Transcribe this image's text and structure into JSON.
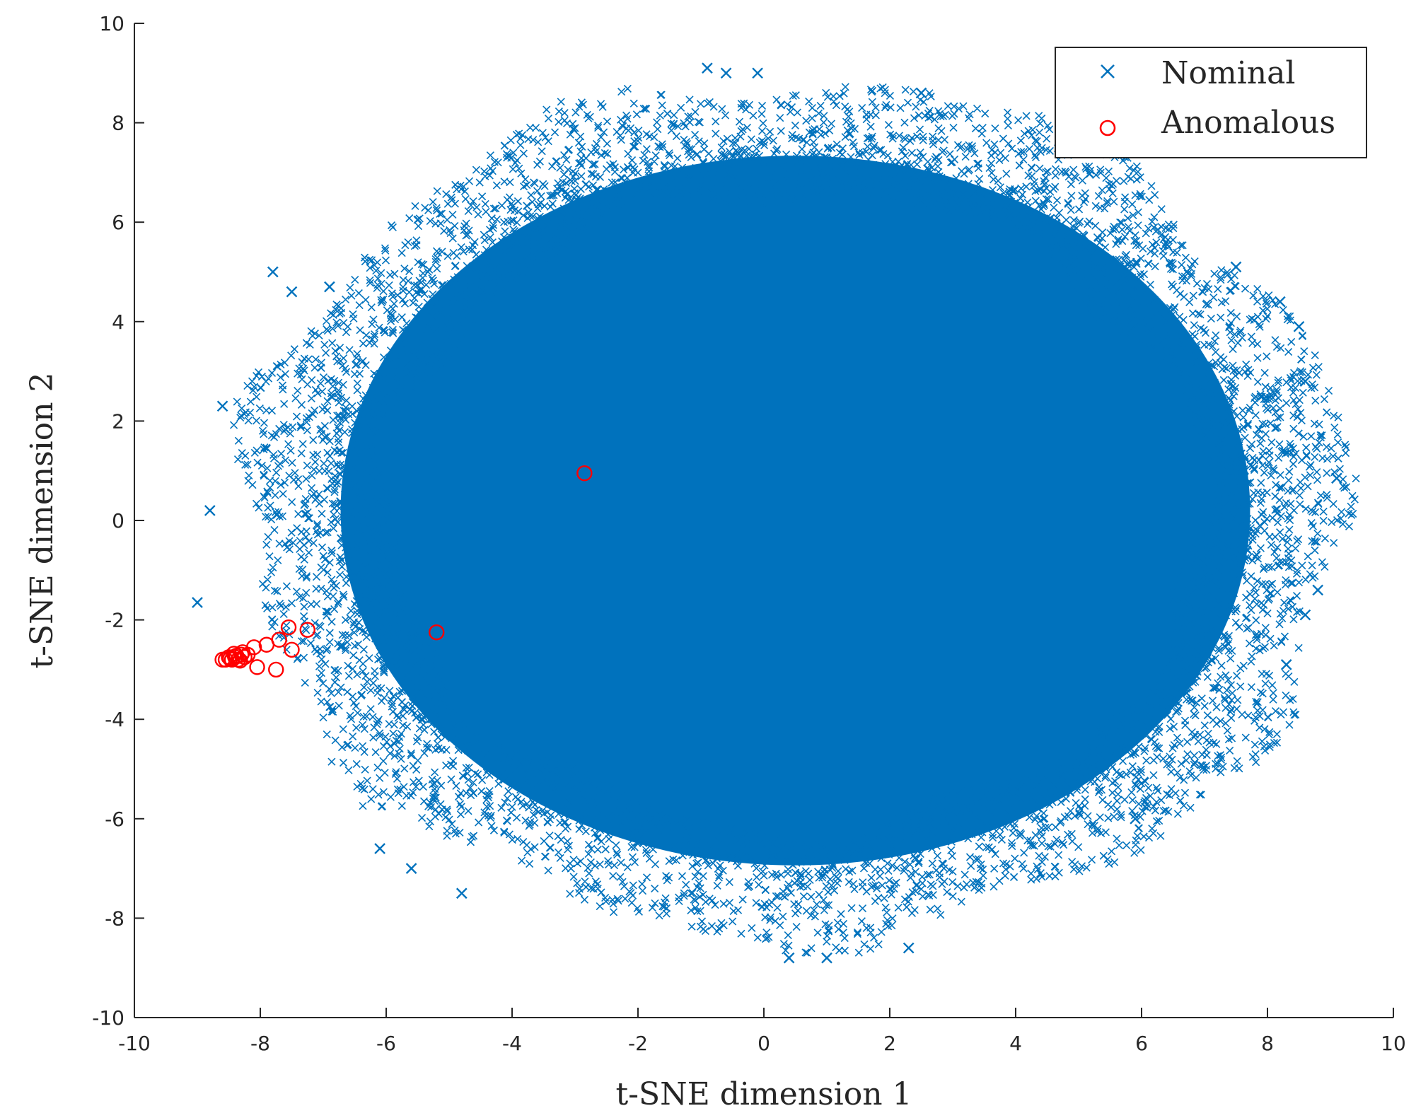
{
  "chart_data": {
    "type": "scatter",
    "xlabel": "t-SNE dimension 1",
    "ylabel": "t-SNE dimension 2",
    "xlim": [
      -10,
      10
    ],
    "ylim": [
      -10,
      10
    ],
    "xticks": [
      -10,
      -8,
      -6,
      -4,
      -2,
      0,
      2,
      4,
      6,
      8,
      10
    ],
    "yticks": [
      -10,
      -8,
      -6,
      -4,
      -2,
      0,
      2,
      4,
      6,
      8,
      10
    ],
    "grid": false,
    "legend_position": "top-right",
    "series": [
      {
        "name": "Nominal",
        "marker": "x",
        "color": "#0072BD",
        "cloud": {
          "center": [
            0.5,
            0.2
          ],
          "radius_x": 8.4,
          "radius_y": 8.3,
          "outliers": [
            [
              -9.0,
              -1.65
            ],
            [
              -8.8,
              0.2
            ],
            [
              -8.6,
              2.3
            ],
            [
              -7.5,
              4.6
            ],
            [
              -6.9,
              4.7
            ],
            [
              -6.1,
              -6.6
            ],
            [
              -5.6,
              -7.0
            ],
            [
              -4.8,
              -7.5
            ],
            [
              -0.9,
              9.1
            ],
            [
              -0.6,
              9.0
            ],
            [
              -0.1,
              9.0
            ],
            [
              0.4,
              -8.8
            ],
            [
              1.0,
              -8.8
            ],
            [
              2.3,
              -8.6
            ],
            [
              5.9,
              -6.0
            ],
            [
              7.5,
              5.1
            ],
            [
              8.2,
              4.4
            ],
            [
              8.5,
              3.9
            ],
            [
              8.6,
              2.8
            ],
            [
              9.1,
              0.85
            ],
            [
              8.8,
              -1.4
            ],
            [
              8.6,
              -1.9
            ],
            [
              8.3,
              -2.9
            ],
            [
              -7.8,
              5.0
            ],
            [
              2.5,
              8.6
            ]
          ]
        }
      },
      {
        "name": "Anomalous",
        "marker": "o",
        "color": "#FF0000",
        "points": [
          [
            -2.85,
            0.95
          ],
          [
            -5.2,
            -2.25
          ],
          [
            -7.25,
            -2.2
          ],
          [
            -7.55,
            -2.15
          ],
          [
            -7.5,
            -2.6
          ],
          [
            -7.7,
            -2.4
          ],
          [
            -7.75,
            -3.0
          ],
          [
            -7.9,
            -2.5
          ],
          [
            -8.05,
            -2.95
          ],
          [
            -8.1,
            -2.55
          ],
          [
            -8.2,
            -2.7
          ],
          [
            -8.25,
            -2.75
          ],
          [
            -8.3,
            -2.7
          ],
          [
            -8.35,
            -2.8
          ],
          [
            -8.4,
            -2.75
          ],
          [
            -8.45,
            -2.8
          ],
          [
            -8.5,
            -2.75
          ],
          [
            -8.55,
            -2.8
          ],
          [
            -8.6,
            -2.8
          ],
          [
            -8.28,
            -2.65
          ],
          [
            -8.38,
            -2.72
          ],
          [
            -8.48,
            -2.78
          ],
          [
            -8.32,
            -2.82
          ],
          [
            -8.42,
            -2.68
          ]
        ]
      }
    ]
  }
}
